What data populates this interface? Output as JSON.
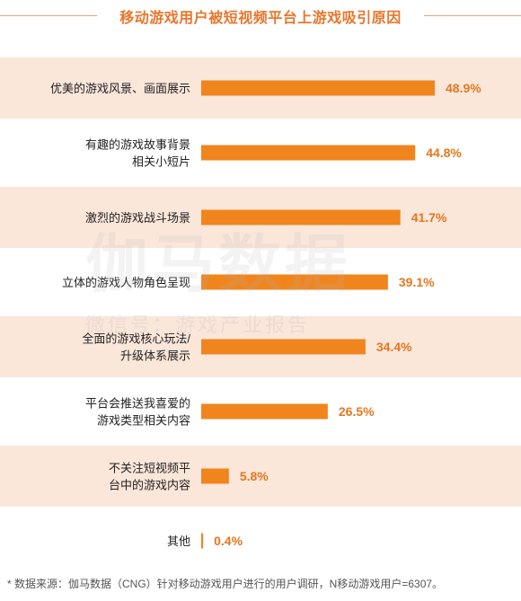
{
  "title": "移动游戏用户被短视频平台上游戏吸引原因",
  "watermark": {
    "brand": "伽马数据",
    "account": "微信号：游戏产业报告"
  },
  "footnote": "* 数据来源：伽马数据（CNG）针对移动游戏用户进行的用户调研，N移动游戏用户=6307。",
  "colors": {
    "bar": "#f0851e",
    "value_text": "#e3781e",
    "stripe": "#fbe6da",
    "label_text": "#222222",
    "title": "#e8762c"
  },
  "chart_data": {
    "type": "bar",
    "orientation": "horizontal",
    "title": "移动游戏用户被短视频平台上游戏吸引原因",
    "xlabel": "",
    "ylabel": "",
    "xlim": [
      0,
      100
    ],
    "grid": false,
    "legend": "none",
    "value_format": "percent",
    "categories": [
      [
        "优美的游戏风景、画面展示"
      ],
      [
        "有趣的游戏故事背景",
        "相关小短片"
      ],
      [
        "激烈的游戏战斗场景"
      ],
      [
        "立体的游戏人物角色呈现"
      ],
      [
        "全面的游戏核心玩法/",
        "升级体系展示"
      ],
      [
        "平台会推送我喜爱的",
        "游戏类型相关内容"
      ],
      [
        "不关注短视频平",
        "台中的游戏内容"
      ],
      [
        "其他"
      ]
    ],
    "values": [
      48.9,
      44.8,
      41.7,
      39.1,
      34.4,
      26.5,
      5.8,
      0.4
    ],
    "value_labels": [
      "48.9%",
      "44.8%",
      "41.7%",
      "39.1%",
      "34.4%",
      "26.5%",
      "5.8%",
      "0.4%"
    ]
  }
}
